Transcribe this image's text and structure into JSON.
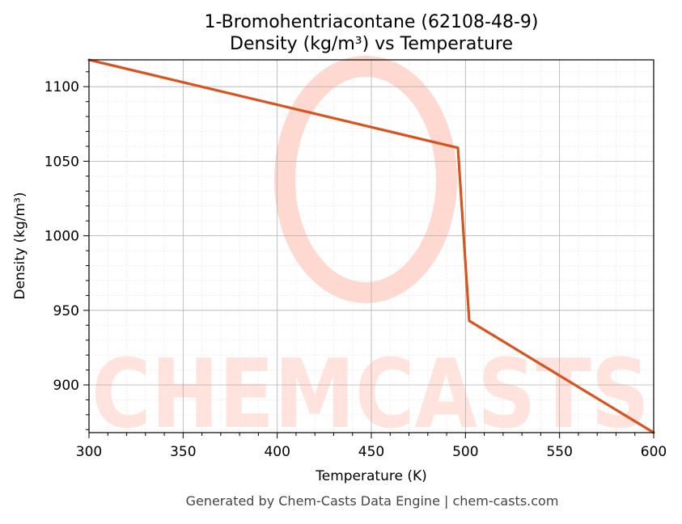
{
  "chart_data": {
    "type": "line",
    "title": "1-Bromohentriacontane (62108-48-9)",
    "subtitle": "Density (kg/m³) vs Temperature",
    "xlabel": "Temperature (K)",
    "ylabel": "Density (kg/m³)",
    "xlim": [
      300,
      600
    ],
    "ylim": [
      868,
      1118
    ],
    "x_ticks": [
      300,
      350,
      400,
      450,
      500,
      550,
      600
    ],
    "y_ticks": [
      900,
      950,
      1000,
      1050,
      1100
    ],
    "grid": true,
    "series": [
      {
        "color": "#d9531e",
        "x": [
          300,
          496,
          502,
          600
        ],
        "y": [
          1118,
          1059,
          943,
          868
        ]
      }
    ]
  },
  "watermark": {
    "text": "CHEMCASTS",
    "color": "#ffd9d0"
  },
  "footer": "Generated by Chem-Casts Data Engine | chem-casts.com"
}
